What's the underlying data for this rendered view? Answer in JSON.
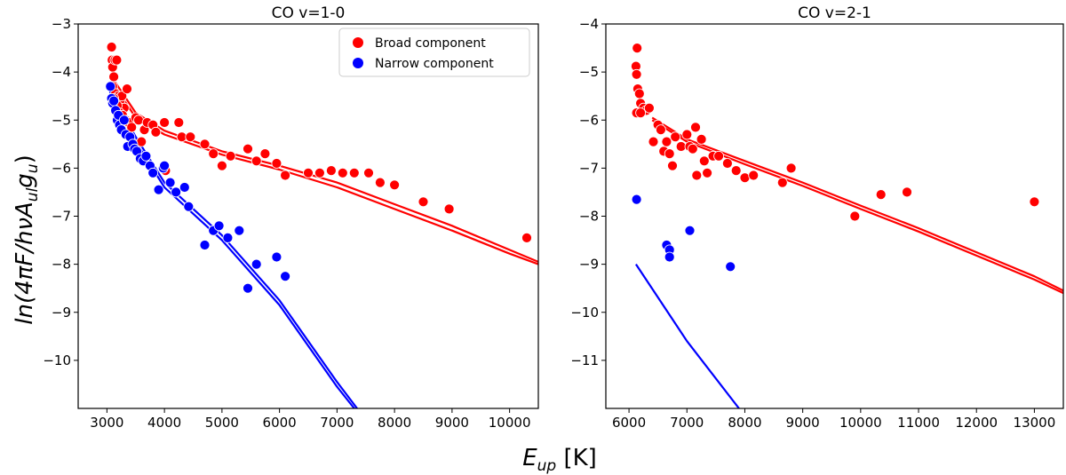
{
  "figure": {
    "xlabel_main": "E",
    "xlabel_sub": "up",
    "xlabel_unit": " [K]",
    "ylabel": "ln(4πF/hνA",
    "ylabel_sub_ul": "ul",
    "ylabel_g": "g",
    "ylabel_sub_u": "u",
    "ylabel_close": ")"
  },
  "legend": {
    "items": [
      {
        "label": "Broad component",
        "color": "#ff0000"
      },
      {
        "label": "Narrow component",
        "color": "#0000ff"
      }
    ]
  },
  "chart_data": [
    {
      "type": "scatter",
      "title": "CO v=1-0",
      "xlim": [
        2500,
        10500
      ],
      "ylim": [
        -11,
        -3
      ],
      "xticks": [
        3000,
        4000,
        5000,
        6000,
        7000,
        8000,
        9000,
        10000
      ],
      "yticks": [
        -3,
        -4,
        -5,
        -6,
        -7,
        -8,
        -9,
        -10
      ],
      "series": [
        {
          "name": "Broad component",
          "color": "#ff0000",
          "points": [
            [
              3080,
              -3.48
            ],
            [
              3090,
              -3.75
            ],
            [
              3100,
              -3.9
            ],
            [
              3120,
              -4.1
            ],
            [
              3140,
              -3.75
            ],
            [
              3170,
              -3.75
            ],
            [
              3100,
              -4.3
            ],
            [
              3150,
              -4.45
            ],
            [
              3200,
              -4.5
            ],
            [
              3230,
              -4.6
            ],
            [
              3260,
              -4.5
            ],
            [
              3300,
              -4.75
            ],
            [
              3350,
              -4.35
            ],
            [
              3120,
              -4.55
            ],
            [
              3180,
              -4.7
            ],
            [
              3220,
              -4.85
            ],
            [
              3270,
              -4.9
            ],
            [
              3330,
              -5.0
            ],
            [
              3380,
              -5.05
            ],
            [
              3430,
              -5.15
            ],
            [
              3500,
              -4.95
            ],
            [
              3550,
              -5.0
            ],
            [
              3600,
              -5.45
            ],
            [
              3650,
              -5.2
            ],
            [
              3700,
              -5.05
            ],
            [
              3800,
              -5.1
            ],
            [
              3850,
              -5.25
            ],
            [
              4000,
              -5.05
            ],
            [
              4020,
              -6.05
            ],
            [
              4250,
              -5.05
            ],
            [
              4300,
              -5.35
            ],
            [
              4450,
              -5.35
            ],
            [
              4700,
              -5.5
            ],
            [
              4850,
              -5.7
            ],
            [
              5000,
              -5.95
            ],
            [
              5150,
              -5.75
            ],
            [
              5450,
              -5.6
            ],
            [
              5600,
              -5.85
            ],
            [
              5750,
              -5.7
            ],
            [
              5950,
              -5.9
            ],
            [
              6100,
              -6.15
            ],
            [
              6500,
              -6.1
            ],
            [
              6700,
              -6.1
            ],
            [
              6900,
              -6.05
            ],
            [
              7100,
              -6.1
            ],
            [
              7300,
              -6.1
            ],
            [
              7550,
              -6.1
            ],
            [
              7750,
              -6.3
            ],
            [
              8000,
              -6.35
            ],
            [
              8500,
              -6.7
            ],
            [
              8950,
              -6.85
            ],
            [
              10300,
              -7.45
            ]
          ]
        },
        {
          "name": "Narrow component",
          "color": "#0000ff",
          "points": [
            [
              3060,
              -4.3
            ],
            [
              3080,
              -4.55
            ],
            [
              3100,
              -4.65
            ],
            [
              3120,
              -4.6
            ],
            [
              3150,
              -4.8
            ],
            [
              3180,
              -5.0
            ],
            [
              3200,
              -4.9
            ],
            [
              3220,
              -5.1
            ],
            [
              3250,
              -5.2
            ],
            [
              3300,
              -5.0
            ],
            [
              3330,
              -5.3
            ],
            [
              3360,
              -5.55
            ],
            [
              3400,
              -5.35
            ],
            [
              3450,
              -5.5
            ],
            [
              3480,
              -5.6
            ],
            [
              3520,
              -5.65
            ],
            [
              3580,
              -5.8
            ],
            [
              3630,
              -5.85
            ],
            [
              3680,
              -5.75
            ],
            [
              3750,
              -5.95
            ],
            [
              3800,
              -6.1
            ],
            [
              3900,
              -6.45
            ],
            [
              3980,
              -6.0
            ],
            [
              4000,
              -5.95
            ],
            [
              4100,
              -6.3
            ],
            [
              4200,
              -6.5
            ],
            [
              4350,
              -6.4
            ],
            [
              4420,
              -6.8
            ],
            [
              4700,
              -7.6
            ],
            [
              4850,
              -7.3
            ],
            [
              4950,
              -7.2
            ],
            [
              5100,
              -7.45
            ],
            [
              5300,
              -7.3
            ],
            [
              5450,
              -8.5
            ],
            [
              5600,
              -8.0
            ],
            [
              5950,
              -7.85
            ],
            [
              6100,
              -8.25
            ]
          ]
        }
      ],
      "lines": [
        {
          "color": "#ff0000",
          "points": [
            [
              3080,
              -4.1
            ],
            [
              3500,
              -4.85
            ],
            [
              4000,
              -5.22
            ],
            [
              5000,
              -5.65
            ],
            [
              6000,
              -5.95
            ],
            [
              7000,
              -6.3
            ],
            [
              8000,
              -6.75
            ],
            [
              9000,
              -7.2
            ],
            [
              10000,
              -7.7
            ],
            [
              10500,
              -7.95
            ]
          ]
        },
        {
          "color": "#ff0000",
          "points": [
            [
              3080,
              -4.2
            ],
            [
              3500,
              -4.95
            ],
            [
              4000,
              -5.3
            ],
            [
              5000,
              -5.72
            ],
            [
              6000,
              -6.03
            ],
            [
              7000,
              -6.4
            ],
            [
              8000,
              -6.85
            ],
            [
              9000,
              -7.3
            ],
            [
              10000,
              -7.78
            ],
            [
              10500,
              -8.0
            ]
          ]
        },
        {
          "color": "#0000ff",
          "points": [
            [
              3050,
              -4.4
            ],
            [
              3500,
              -5.35
            ],
            [
              4000,
              -6.3
            ],
            [
              5000,
              -7.4
            ],
            [
              6000,
              -8.75
            ],
            [
              7000,
              -10.45
            ],
            [
              7350,
              -11.0
            ]
          ]
        },
        {
          "color": "#0000ff",
          "points": [
            [
              3050,
              -4.5
            ],
            [
              3500,
              -5.45
            ],
            [
              4000,
              -6.4
            ],
            [
              5000,
              -7.5
            ],
            [
              6000,
              -8.85
            ],
            [
              7000,
              -10.55
            ],
            [
              7300,
              -11.0
            ]
          ]
        }
      ]
    },
    {
      "type": "scatter",
      "title": "CO v=2-1",
      "xlim": [
        5600,
        13500
      ],
      "ylim": [
        -12,
        -4
      ],
      "xticks": [
        6000,
        7000,
        8000,
        9000,
        10000,
        11000,
        12000,
        13000
      ],
      "yticks": [
        -4,
        -5,
        -6,
        -7,
        -8,
        -9,
        -10,
        -11
      ],
      "series": [
        {
          "name": "Broad component",
          "color": "#ff0000",
          "points": [
            [
              6140,
              -4.5
            ],
            [
              6120,
              -4.88
            ],
            [
              6130,
              -5.05
            ],
            [
              6150,
              -5.35
            ],
            [
              6180,
              -5.45
            ],
            [
              6130,
              -5.85
            ],
            [
              6200,
              -5.65
            ],
            [
              6250,
              -5.75
            ],
            [
              6300,
              -5.8
            ],
            [
              6200,
              -5.85
            ],
            [
              6350,
              -5.75
            ],
            [
              6420,
              -6.45
            ],
            [
              6500,
              -6.1
            ],
            [
              6550,
              -6.2
            ],
            [
              6600,
              -6.65
            ],
            [
              6650,
              -6.45
            ],
            [
              6700,
              -6.7
            ],
            [
              6750,
              -6.95
            ],
            [
              6800,
              -6.35
            ],
            [
              6900,
              -6.55
            ],
            [
              7000,
              -6.3
            ],
            [
              7050,
              -6.55
            ],
            [
              7100,
              -6.6
            ],
            [
              7150,
              -6.15
            ],
            [
              7170,
              -7.15
            ],
            [
              7250,
              -6.4
            ],
            [
              7300,
              -6.85
            ],
            [
              7350,
              -7.1
            ],
            [
              7450,
              -6.75
            ],
            [
              7550,
              -6.75
            ],
            [
              7700,
              -6.9
            ],
            [
              7850,
              -7.05
            ],
            [
              8000,
              -7.2
            ],
            [
              8150,
              -7.15
            ],
            [
              8650,
              -7.3
            ],
            [
              8800,
              -7.0
            ],
            [
              9900,
              -8.0
            ],
            [
              10350,
              -7.55
            ],
            [
              10800,
              -7.5
            ],
            [
              13000,
              -7.7
            ]
          ]
        },
        {
          "name": "Narrow component",
          "color": "#0000ff",
          "points": [
            [
              6130,
              -7.65
            ],
            [
              6650,
              -8.6
            ],
            [
              6700,
              -8.7
            ],
            [
              6700,
              -8.85
            ],
            [
              7050,
              -8.3
            ],
            [
              7750,
              -9.05
            ]
          ]
        }
      ],
      "lines": [
        {
          "color": "#ff0000",
          "points": [
            [
              6400,
              -5.95
            ],
            [
              7000,
              -6.4
            ],
            [
              8000,
              -6.85
            ],
            [
              9000,
              -7.3
            ],
            [
              10000,
              -7.78
            ],
            [
              11000,
              -8.25
            ],
            [
              12000,
              -8.75
            ],
            [
              13000,
              -9.25
            ],
            [
              13500,
              -9.55
            ]
          ]
        },
        {
          "color": "#ff0000",
          "points": [
            [
              6400,
              -6.0
            ],
            [
              7000,
              -6.45
            ],
            [
              8000,
              -6.92
            ],
            [
              9000,
              -7.37
            ],
            [
              10000,
              -7.85
            ],
            [
              11000,
              -8.32
            ],
            [
              12000,
              -8.82
            ],
            [
              13000,
              -9.32
            ],
            [
              13500,
              -9.6
            ]
          ]
        },
        {
          "color": "#0000ff",
          "points": [
            [
              6120,
              -9.0
            ],
            [
              7000,
              -10.6
            ],
            [
              7900,
              -12.0
            ]
          ]
        }
      ]
    }
  ]
}
